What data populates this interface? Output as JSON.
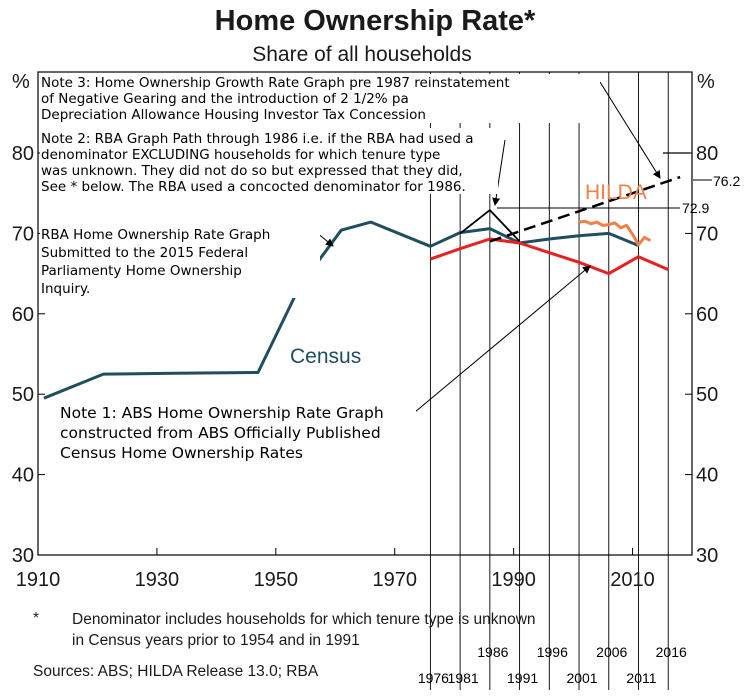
{
  "chart_data": {
    "type": "line",
    "title": "Home Ownership Rate*",
    "subtitle": "Share of all households",
    "unit_left": "%",
    "unit_right": "%",
    "xlim": [
      1910,
      2020
    ],
    "ylim": [
      30,
      82
    ],
    "x_ticks": [
      1910,
      1930,
      1950,
      1970,
      1990,
      2010
    ],
    "y_ticks": [
      30,
      40,
      50,
      60,
      70,
      80
    ],
    "grid": false,
    "series": [
      {
        "name": "Census",
        "color": "#1f4e5f",
        "x": [
          1911,
          1921,
          1933,
          1947,
          1954,
          1961,
          1966,
          1976,
          1981,
          1986,
          1991,
          1996,
          2001,
          2006,
          2011
        ],
        "y": [
          49.5,
          52.5,
          52.6,
          52.7,
          63.4,
          70.4,
          71.4,
          68.4,
          70.1,
          70.6,
          68.8,
          69.3,
          69.7,
          70.0,
          68.5
        ]
      },
      {
        "name": "HILDA",
        "color": "#f08048",
        "x": [
          2001,
          2002,
          2003,
          2004,
          2005,
          2006,
          2007,
          2008,
          2009,
          2010,
          2011,
          2012,
          2013
        ],
        "y": [
          71.4,
          71.5,
          71.2,
          71.4,
          71.0,
          71.1,
          71.3,
          70.7,
          71.0,
          69.9,
          68.6,
          69.5,
          69.1
        ]
      },
      {
        "color": "#e82020",
        "x": [
          1976,
          1981,
          1986,
          1991,
          1996,
          2001,
          2006,
          2011,
          2016
        ],
        "y": [
          66.8,
          68.1,
          69.3,
          68.8,
          67.6,
          66.4,
          65.0,
          67.1,
          65.5
        ]
      },
      {
        "color": "#000000",
        "dashed": true,
        "x": [
          1986,
          2018
        ],
        "y": [
          69.0,
          77.0
        ]
      }
    ],
    "annotations": {
      "series_label_census": "Census",
      "series_label_hilda": "HILDA",
      "value_76": "76.2",
      "value_72": "72.9",
      "note3": [
        "Note 3: Home Ownership Growth Rate Graph pre 1987 reinstatement",
        "of Negative Gearing and the introduction of 2 1/2% pa",
        "Depreciation Allowance Housing Investor Tax Concession"
      ],
      "note2": [
        "Note 2: RBA Graph Path through 1986 i.e. if the RBA had used a",
        "denominator EXCLUDING households for which tenure type",
        "was unknown. They did not do so but expressed that they did,",
        "See * below. The RBA used a concocted denominator for 1986."
      ],
      "rba_note": [
        "RBA Home Ownership Rate Graph",
        "Submitted to the 2015 Federal",
        "Parliamenty Home Ownership",
        "Inquiry."
      ],
      "note1": [
        "Note 1: ABS Home Ownership Rate Graph",
        "constructed from ABS Officially Published",
        "Census Home Ownership Rates"
      ],
      "census_years": [
        1976,
        1981,
        1986,
        1991,
        1996,
        2001,
        2006,
        2011,
        2016
      ],
      "census_year_labels": [
        "1976",
        "1981",
        "1986",
        "1991",
        "1996",
        "2001",
        "2006",
        "2011",
        "2016"
      ]
    },
    "footnote": {
      "star": "*",
      "line1": "Denominator includes households for which tenure type is unknown",
      "line2": "in Census years prior to 1954 and in 1991",
      "sources": "Sources:   ABS; HILDA Release 13.0; RBA"
    }
  }
}
